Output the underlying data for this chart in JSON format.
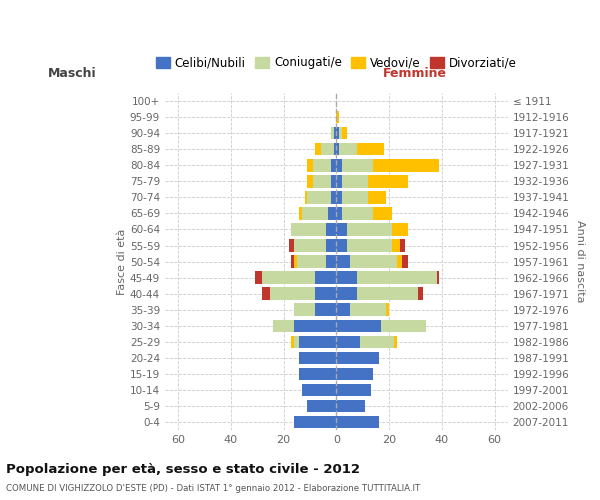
{
  "age_groups": [
    "0-4",
    "5-9",
    "10-14",
    "15-19",
    "20-24",
    "25-29",
    "30-34",
    "35-39",
    "40-44",
    "45-49",
    "50-54",
    "55-59",
    "60-64",
    "65-69",
    "70-74",
    "75-79",
    "80-84",
    "85-89",
    "90-94",
    "95-99",
    "100+"
  ],
  "birth_years": [
    "2007-2011",
    "2002-2006",
    "1997-2001",
    "1992-1996",
    "1987-1991",
    "1982-1986",
    "1977-1981",
    "1972-1976",
    "1967-1971",
    "1962-1966",
    "1957-1961",
    "1952-1956",
    "1947-1951",
    "1942-1946",
    "1937-1941",
    "1932-1936",
    "1927-1931",
    "1922-1926",
    "1917-1921",
    "1912-1916",
    "≤ 1911"
  ],
  "maschi_celibi": [
    16,
    11,
    13,
    14,
    14,
    14,
    16,
    8,
    8,
    8,
    4,
    4,
    4,
    3,
    2,
    2,
    2,
    1,
    1,
    0,
    0
  ],
  "maschi_coniugati": [
    0,
    0,
    0,
    0,
    0,
    2,
    8,
    8,
    17,
    20,
    11,
    12,
    13,
    10,
    9,
    7,
    7,
    5,
    1,
    0,
    0
  ],
  "maschi_vedovi": [
    0,
    0,
    0,
    0,
    0,
    1,
    0,
    0,
    0,
    0,
    1,
    0,
    0,
    1,
    1,
    2,
    2,
    2,
    0,
    0,
    0
  ],
  "maschi_divorziati": [
    0,
    0,
    0,
    0,
    0,
    0,
    0,
    0,
    3,
    3,
    1,
    2,
    0,
    0,
    0,
    0,
    0,
    0,
    0,
    0,
    0
  ],
  "femmine_celibi": [
    16,
    11,
    13,
    14,
    16,
    9,
    17,
    5,
    8,
    8,
    5,
    4,
    4,
    2,
    2,
    2,
    2,
    1,
    1,
    0,
    0
  ],
  "femmine_coniugati": [
    0,
    0,
    0,
    0,
    0,
    13,
    17,
    14,
    23,
    30,
    18,
    17,
    17,
    12,
    10,
    10,
    12,
    7,
    1,
    0,
    0
  ],
  "femmine_vedovi": [
    0,
    0,
    0,
    0,
    0,
    1,
    0,
    1,
    0,
    0,
    2,
    3,
    6,
    7,
    7,
    15,
    25,
    10,
    2,
    1,
    0
  ],
  "femmine_divorziati": [
    0,
    0,
    0,
    0,
    0,
    0,
    0,
    0,
    2,
    1,
    2,
    2,
    0,
    0,
    0,
    0,
    0,
    0,
    0,
    0,
    0
  ],
  "colors": {
    "celibi": "#4472c4",
    "coniugati": "#c5d9a0",
    "vedovi": "#ffc000",
    "divorziati": "#c0362c"
  },
  "title": "Popolazione per età, sesso e stato civile - 2012",
  "subtitle": "COMUNE DI VIGHIZZOLO D'ESTE (PD) - Dati ISTAT 1° gennaio 2012 - Elaborazione TUTTITALIA.IT",
  "xlabel_left": "Maschi",
  "xlabel_right": "Femmine",
  "ylabel_left": "Fasce di età",
  "ylabel_right": "Anni di nascita",
  "xlim": 65,
  "background_color": "#ffffff",
  "grid_color": "#cccccc",
  "legend_labels": [
    "Celibi/Nubili",
    "Coniugati/e",
    "Vedovi/e",
    "Divorziati/e"
  ]
}
